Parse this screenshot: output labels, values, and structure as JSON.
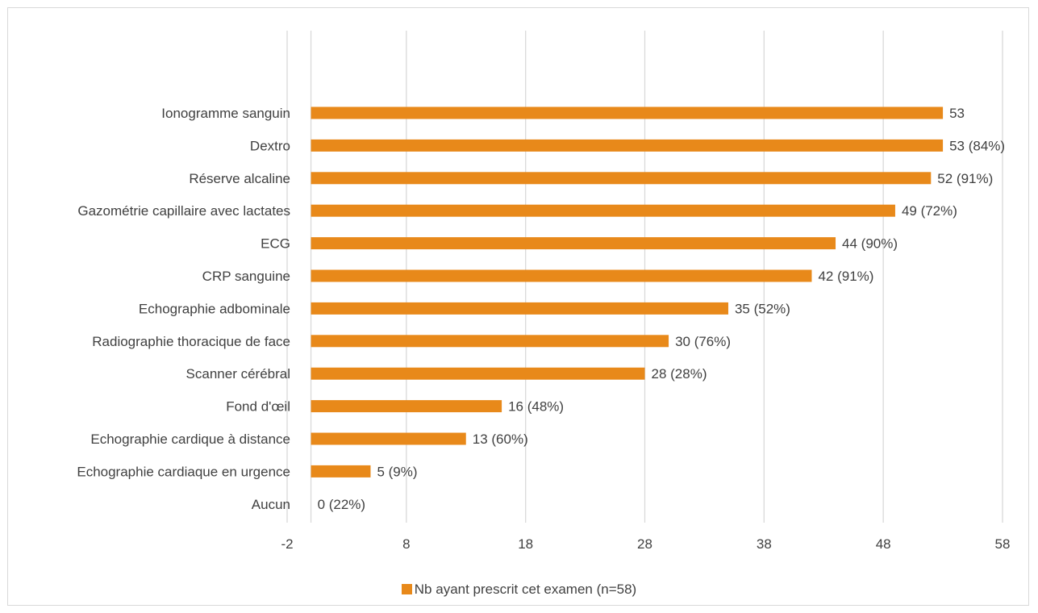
{
  "chart_data": {
    "type": "bar",
    "orientation": "horizontal",
    "categories": [
      "Ionogramme sanguin",
      "Dextro",
      "Réserve alcaline",
      "Gazométrie capillaire avec lactates",
      "ECG",
      "CRP sanguine",
      "Echographie adbominale",
      "Radiographie thoracique de face",
      "Scanner cérébral",
      "Fond d'œil",
      "Echographie cardique à distance",
      "Echographie cardiaque en urgence",
      "Aucun"
    ],
    "series": [
      {
        "name": "Nb ayant prescrit cet examen (n=58)",
        "color": "#e8891a",
        "values": [
          53,
          53,
          52,
          49,
          44,
          42,
          35,
          30,
          28,
          16,
          13,
          5,
          0
        ],
        "data_labels": [
          "53",
          "53 (84%)",
          "52 (91%)",
          "49 (72%)",
          "44 (90%)",
          "42 (91%)",
          "35 (52%)",
          "30 (76%)",
          "28 (28%)",
          "16 (48%)",
          "13 (60%)",
          "5 (9%)",
          "0 (22%)"
        ]
      }
    ],
    "xlim": [
      -2,
      58
    ],
    "xticks": [
      "-2",
      "8",
      "18",
      "28",
      "38",
      "48",
      "58"
    ],
    "title": "",
    "xlabel": "",
    "ylabel": "",
    "grid": "vertical",
    "legend_position": "bottom",
    "colors": {
      "bar": "#e8891a",
      "grid": "#d9d9d9",
      "text": "#404040"
    }
  }
}
